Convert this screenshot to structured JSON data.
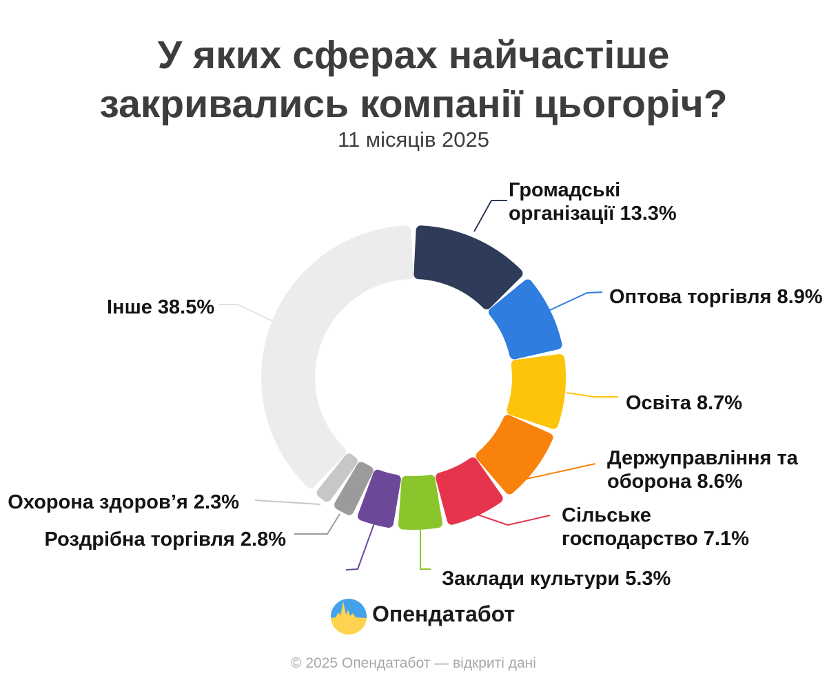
{
  "title": {
    "line1": "У яких сферах найчастіше",
    "line2": "закривались компанії цьогоріч?",
    "subtitle": "11 місяців 2025"
  },
  "chart_data": {
    "type": "pie",
    "donut": true,
    "start_angle_deg": 0,
    "direction": "clockwise",
    "unit": "%",
    "title": "У яких сферах найчастіше закривались компанії цьогоріч? 11 місяців 2025",
    "segments": [
      {
        "id": "hromadski",
        "label": "Громадські організації",
        "value": 13.3,
        "color": "#2e3b59",
        "label_lines": [
          "Громадські",
          "організації 13.3%"
        ]
      },
      {
        "id": "optova",
        "label": "Оптова торгівля",
        "value": 8.9,
        "color": "#2e7ddf",
        "label_lines": [
          "Оптова торгівля 8.9%"
        ]
      },
      {
        "id": "osvita",
        "label": "Освіта",
        "value": 8.7,
        "color": "#fcc40a",
        "label_lines": [
          "Освіта 8.7%"
        ]
      },
      {
        "id": "derzhupravlinnia",
        "label": "Держуправління та оборона",
        "value": 8.6,
        "color": "#f8820b",
        "label_lines": [
          "Держуправління та",
          "оборона 8.6%"
        ]
      },
      {
        "id": "silske",
        "label": "Сільське господарство",
        "value": 7.1,
        "color": "#e6344c",
        "label_lines": [
          "Сільське",
          "господарство 7.1%"
        ]
      },
      {
        "id": "zaklady",
        "label": "Заклади культури",
        "value": 5.3,
        "color": "#8ac62b",
        "label_lines": [
          "Заклади культури 5.3%"
        ]
      },
      {
        "id": "unlabeled",
        "label": "",
        "value": 4.5,
        "color": "#6c4899",
        "label_lines": [],
        "value_estimated": true
      },
      {
        "id": "rozdribna",
        "label": "Роздрібна торгівля",
        "value": 2.8,
        "color": "#9b9b9b",
        "label_lines": [
          "Роздрібна торгівля 2.8%"
        ]
      },
      {
        "id": "okhorona",
        "label": "Охорона здоров’я",
        "value": 2.3,
        "color": "#c7c7c7",
        "label_lines": [
          "Охорона здоров’я 2.3%"
        ]
      },
      {
        "id": "inshe",
        "label": "Інше",
        "value": 38.5,
        "color": "#ececec",
        "label_lines": [
          "Інше 38.5%"
        ]
      }
    ]
  },
  "logo": {
    "text": "Опендатабот",
    "icon": "opendatabot-pulse-icon",
    "icon_colors": {
      "top": "#45a2ea",
      "bottom": "#fdd34f"
    }
  },
  "footer": {
    "copyright": "© 2025 Опендатабот — відкриті дані"
  }
}
